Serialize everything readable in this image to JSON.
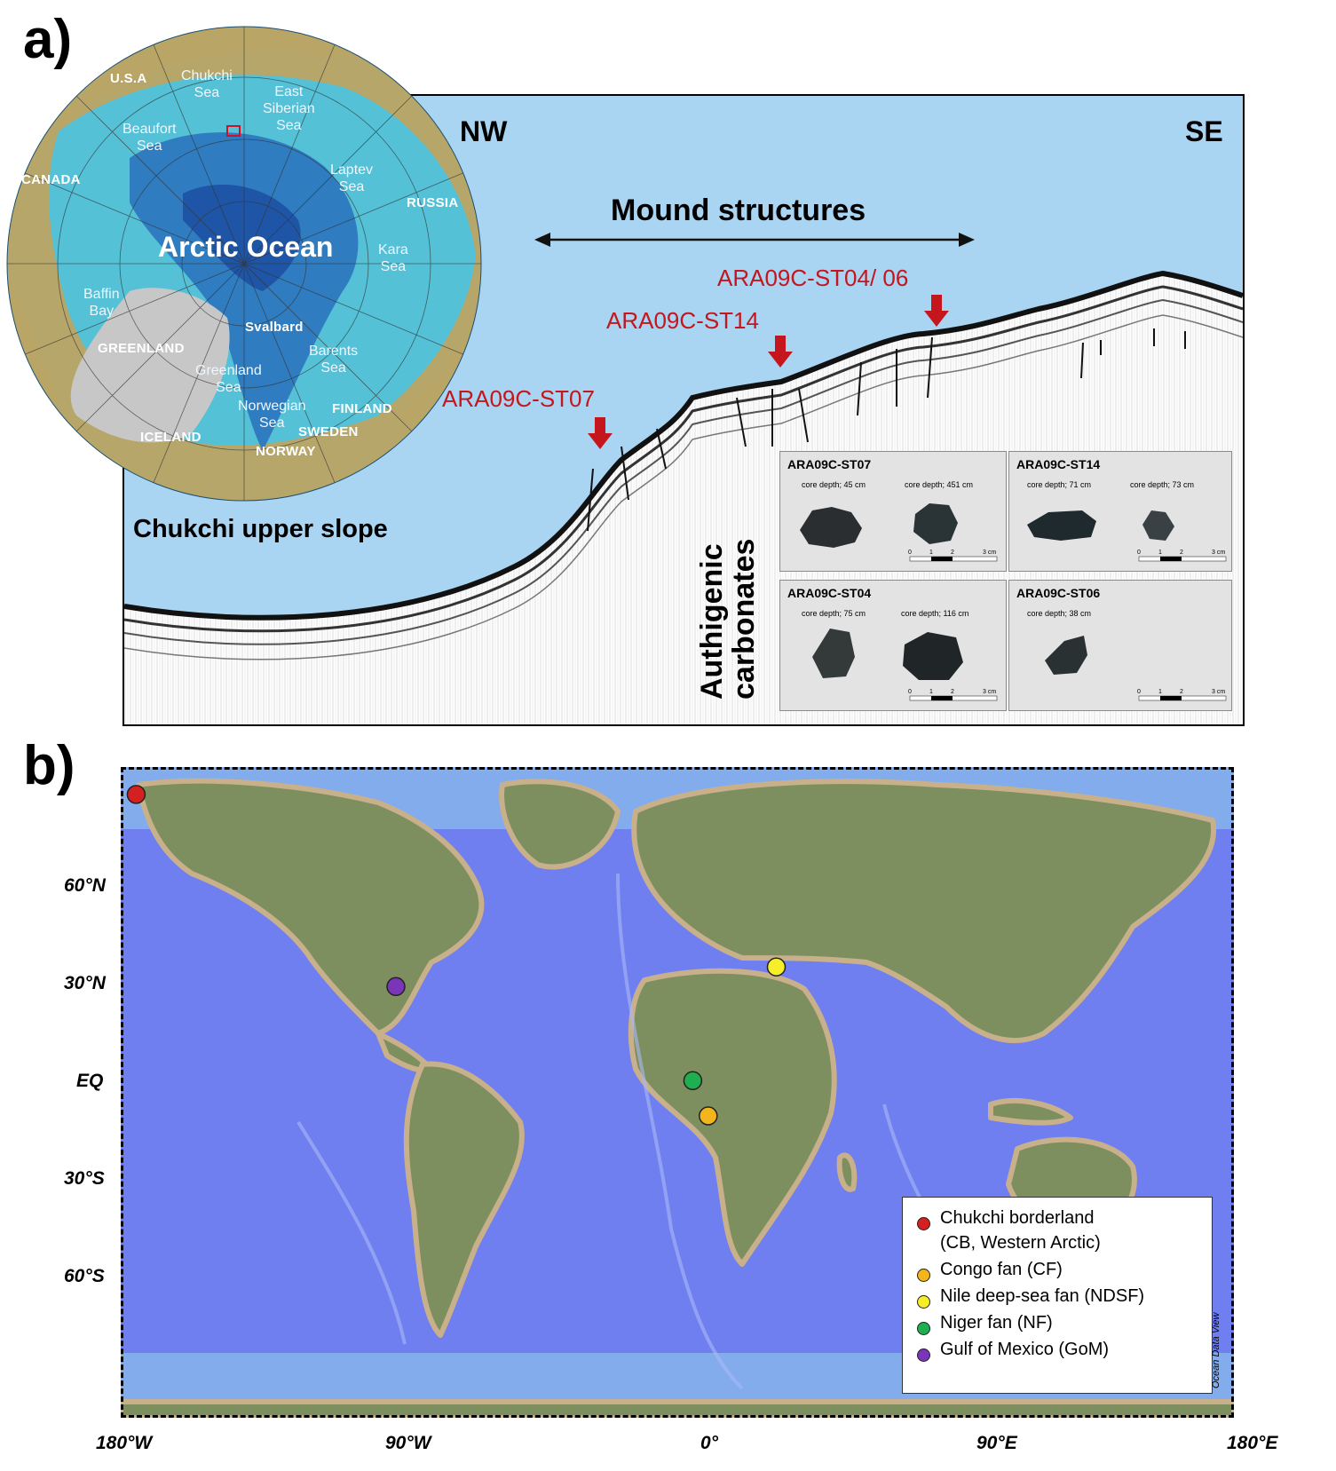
{
  "panel_a": {
    "label": "a)",
    "direction_left": "NW",
    "direction_right": "SE",
    "mound_label": "Mound structures",
    "slope_label": "Chukchi upper slope",
    "stations": [
      "ARA09C-ST07",
      "ARA09C-ST14",
      "ARA09C-ST04/ 06"
    ],
    "carbonate_label_1": "Authigenic",
    "carbonate_label_2": "carbonates",
    "arctic_map": {
      "ocean_title": "Arctic Ocean",
      "countries": [
        "U.S.A",
        "CANADA",
        "RUSSIA",
        "GREENLAND",
        "ICELAND",
        "FINLAND",
        "SWEDEN",
        "NORWAY",
        "Svalbard"
      ],
      "seas": {
        "chukchi_1": "Chukchi",
        "chukchi_2": "Sea",
        "east_1": "East",
        "east_2": "Siberian",
        "east_3": "Sea",
        "beaufort_1": "Beaufort",
        "beaufort_2": "Sea",
        "laptev_1": "Laptev",
        "laptev_2": "Sea",
        "kara_1": "Kara",
        "kara_2": "Sea",
        "baffin_1": "Baffin",
        "baffin_2": "Bay",
        "barents_1": "Barents",
        "barents_2": "Sea",
        "greenland_1": "Greenland",
        "greenland_2": "Sea",
        "norwegian_1": "Norwegian",
        "norwegian_2": "Sea"
      }
    },
    "samples": [
      {
        "title": "ARA09C-ST07",
        "depths": [
          "core depth; 45 cm",
          "core depth; 451 cm"
        ]
      },
      {
        "title": "ARA09C-ST14",
        "depths": [
          "core depth; 71 cm",
          "core depth; 73 cm"
        ]
      },
      {
        "title": "ARA09C-ST04",
        "depths": [
          "core depth; 75 cm",
          "core depth; 116 cm"
        ]
      },
      {
        "title": "ARA09C-ST06",
        "depths": [
          "core depth; 38 cm"
        ]
      }
    ],
    "scale_bar": {
      "t0": "0",
      "t1": "1",
      "t2": "2",
      "t3": "3 cm"
    }
  },
  "panel_b": {
    "label": "b)",
    "lat_ticks": [
      "60°N",
      "30°N",
      "EQ",
      "30°S",
      "60°S"
    ],
    "lon_ticks": [
      "180°W",
      "90°W",
      "0°",
      "90°E",
      "180°E"
    ],
    "credit": "Ocean Data View",
    "sites": [
      {
        "name": "Chukchi borderland",
        "sub": "(CB, Western Arctic)",
        "color": "#d42020",
        "lon": -175,
        "lat": 76
      },
      {
        "name": "Congo fan (CF)",
        "color": "#f2b51c",
        "lon": 10,
        "lat": -6
      },
      {
        "name": "Nile deep-sea fan (NDSF)",
        "color": "#f6ee2a",
        "lon": 32,
        "lat": 32
      },
      {
        "name": "Niger fan (NF)",
        "color": "#1fae50",
        "lon": 5,
        "lat": 3
      },
      {
        "name": "Gulf of Mexico (GoM)",
        "color": "#7a35b8",
        "lon": -91,
        "lat": 27
      }
    ]
  },
  "colors": {
    "ocean_light": "#a9d4f2",
    "ocean_deep": "#6f7ff0",
    "land": "#7d8f5f",
    "station_red": "#c4161c"
  }
}
